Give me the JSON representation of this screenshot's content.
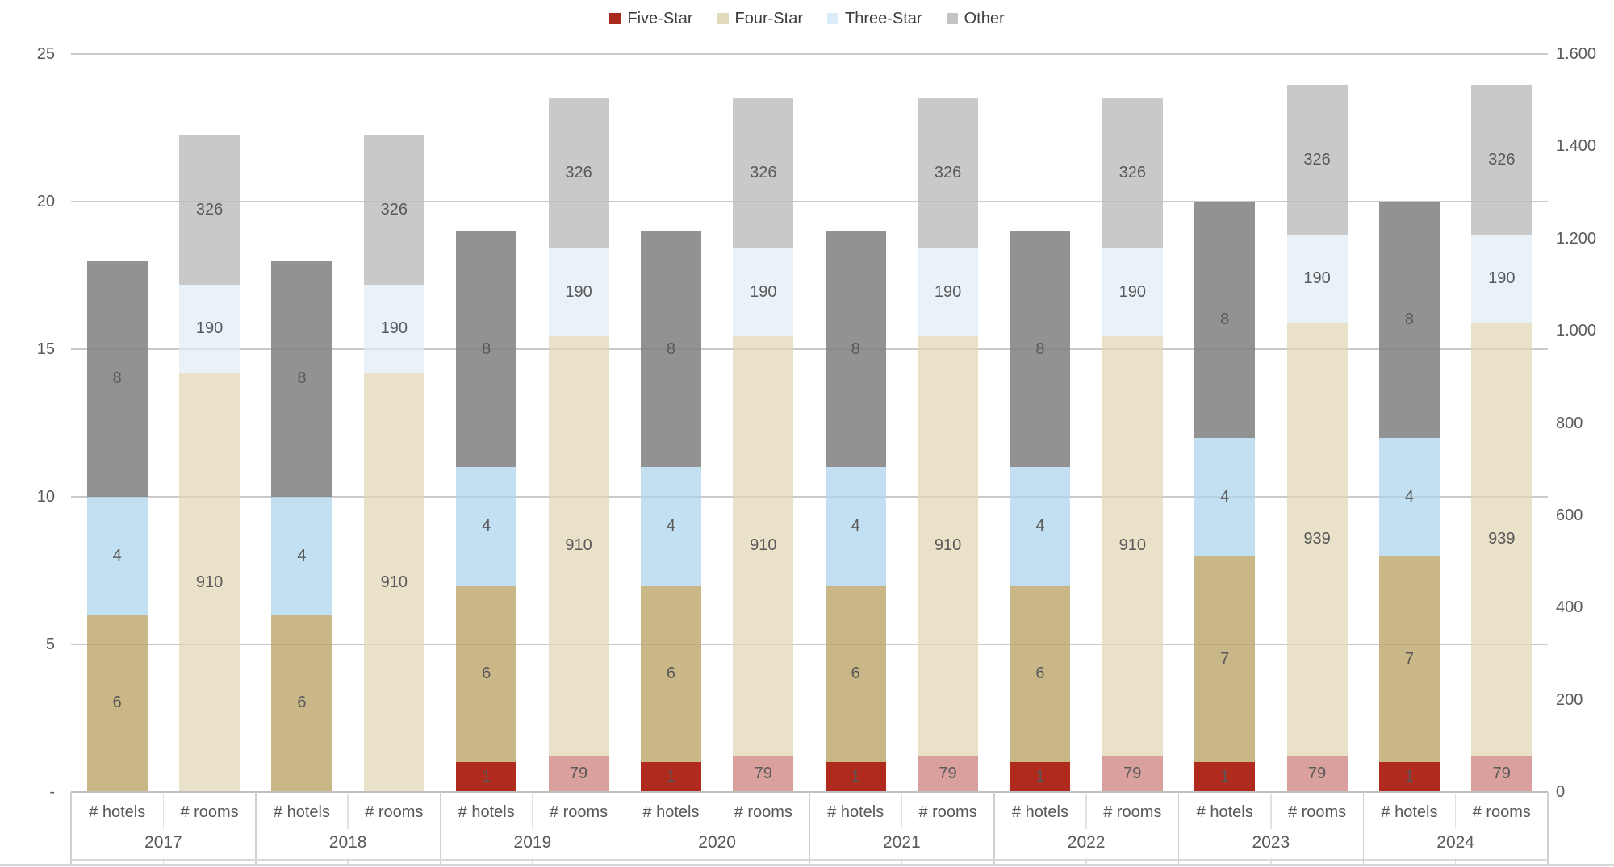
{
  "page": {
    "background": "#ffffff"
  },
  "legend": {
    "items": [
      {
        "label": "Five-Star",
        "color": "#a9291d"
      },
      {
        "label": "Four-Star",
        "color": "#e2dabf"
      },
      {
        "label": "Three-Star",
        "color": "#daecf7"
      },
      {
        "label": "Other",
        "color": "#c3c3c3"
      }
    ]
  },
  "chart_data": {
    "type": "bar",
    "stacked": true,
    "orientation": "vertical",
    "title": "",
    "series": [
      "Five-Star",
      "Four-Star",
      "Three-Star",
      "Other"
    ],
    "legend_position": "top-center",
    "grid": true,
    "bar_kinds": [
      {
        "key": "hotels",
        "label": "# hotels",
        "axis": "left"
      },
      {
        "key": "rooms",
        "label": "# rooms",
        "axis": "right"
      }
    ],
    "colors": {
      "hotels": [
        "#b12a1e",
        "#c9b787",
        "#c2e0f1",
        "#929292"
      ],
      "rooms": [
        "#d9a09e",
        "#e9e2c9",
        "#e9f2f9",
        "#c9c9c9"
      ]
    },
    "label_color": "#595959",
    "left_axis": {
      "min": 0,
      "max": 25,
      "step": 5,
      "ticks": [
        {
          "value": 0,
          "label": "-"
        },
        {
          "value": 5,
          "label": "5"
        },
        {
          "value": 10,
          "label": "10"
        },
        {
          "value": 15,
          "label": "15"
        },
        {
          "value": 20,
          "label": "20"
        },
        {
          "value": 25,
          "label": "25"
        }
      ]
    },
    "right_axis": {
      "min": 0,
      "max": 1600,
      "step": 200,
      "ticks": [
        {
          "value": 0,
          "label": "0"
        },
        {
          "value": 200,
          "label": "200"
        },
        {
          "value": 400,
          "label": "400"
        },
        {
          "value": 600,
          "label": "600"
        },
        {
          "value": 800,
          "label": "800"
        },
        {
          "value": 1000,
          "label": "1.000"
        },
        {
          "value": 1200,
          "label": "1.200"
        },
        {
          "value": 1400,
          "label": "1.400"
        },
        {
          "value": 1600,
          "label": "1.600"
        }
      ]
    },
    "groups": [
      {
        "year": "2017",
        "hotels": [
          0,
          6,
          4,
          8
        ],
        "rooms": [
          0,
          910,
          190,
          326
        ]
      },
      {
        "year": "2018",
        "hotels": [
          0,
          6,
          4,
          8
        ],
        "rooms": [
          0,
          910,
          190,
          326
        ]
      },
      {
        "year": "2019",
        "hotels": [
          1,
          6,
          4,
          8
        ],
        "rooms": [
          79,
          910,
          190,
          326
        ]
      },
      {
        "year": "2020",
        "hotels": [
          1,
          6,
          4,
          8
        ],
        "rooms": [
          79,
          910,
          190,
          326
        ]
      },
      {
        "year": "2021",
        "hotels": [
          1,
          6,
          4,
          8
        ],
        "rooms": [
          79,
          910,
          190,
          326
        ]
      },
      {
        "year": "2022",
        "hotels": [
          1,
          6,
          4,
          8
        ],
        "rooms": [
          79,
          910,
          190,
          326
        ]
      },
      {
        "year": "2023",
        "hotels": [
          1,
          7,
          4,
          8
        ],
        "rooms": [
          79,
          939,
          190,
          326
        ]
      },
      {
        "year": "2024",
        "hotels": [
          1,
          7,
          4,
          8
        ],
        "rooms": [
          79,
          939,
          190,
          326
        ]
      }
    ]
  },
  "colors": {
    "gridline": "#d9d9d9",
    "axis_line": "#bfbfbf",
    "table_border": "#d9d9d9",
    "tick_text": "#595959",
    "legend_text": "#3d3d3d"
  }
}
